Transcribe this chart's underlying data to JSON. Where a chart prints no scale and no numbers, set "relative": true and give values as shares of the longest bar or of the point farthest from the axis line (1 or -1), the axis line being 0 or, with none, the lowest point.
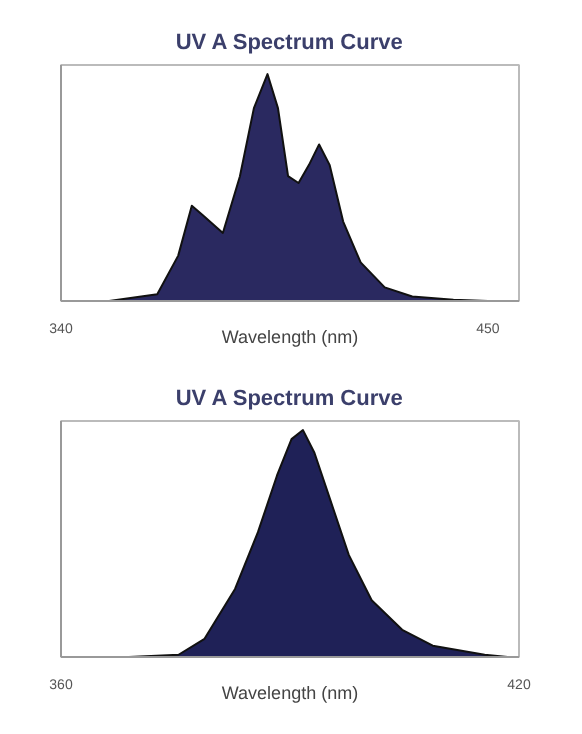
{
  "chart_data": [
    {
      "type": "area",
      "title": "UV A Spectrum Curve",
      "xlabel": "Wavelength (nm)",
      "relative": true,
      "xlim": [
        340,
        458
      ],
      "xticks": [
        340,
        450
      ],
      "grid": false,
      "series": [
        {
          "color": "#2a2960",
          "x": [
            352.4,
            364.8,
            370.2,
            373.7,
            376.4,
            381.7,
            386.1,
            389.7,
            393.2,
            395.9,
            398.5,
            401.2,
            403.9,
            406.5,
            409.2,
            412.7,
            417.2,
            423.4,
            430.5,
            441.1,
            450
          ],
          "values": [
            0,
            0.03,
            0.2,
            0.42,
            0.38,
            0.3,
            0.55,
            0.85,
            1.0,
            0.85,
            0.55,
            0.52,
            0.6,
            0.69,
            0.6,
            0.35,
            0.17,
            0.06,
            0.02,
            0.005,
            0
          ]
        }
      ]
    },
    {
      "type": "area",
      "title": "UV A Spectrum Curve",
      "xlabel": "Wavelength (nm)",
      "relative": true,
      "xlim": [
        360,
        420
      ],
      "xticks": [
        360,
        420
      ],
      "grid": false,
      "series": [
        {
          "color": "#1f2157",
          "x": [
            368.9,
            375.4,
            378.8,
            382.8,
            385.8,
            388.3,
            390.2,
            391.7,
            393.2,
            395.2,
            397.7,
            400.7,
            404.7,
            408.7,
            415.5,
            418.5
          ],
          "values": [
            0,
            0.01,
            0.08,
            0.3,
            0.55,
            0.8,
            0.96,
            1.0,
            0.9,
            0.7,
            0.45,
            0.25,
            0.12,
            0.05,
            0.01,
            0
          ]
        }
      ]
    }
  ]
}
